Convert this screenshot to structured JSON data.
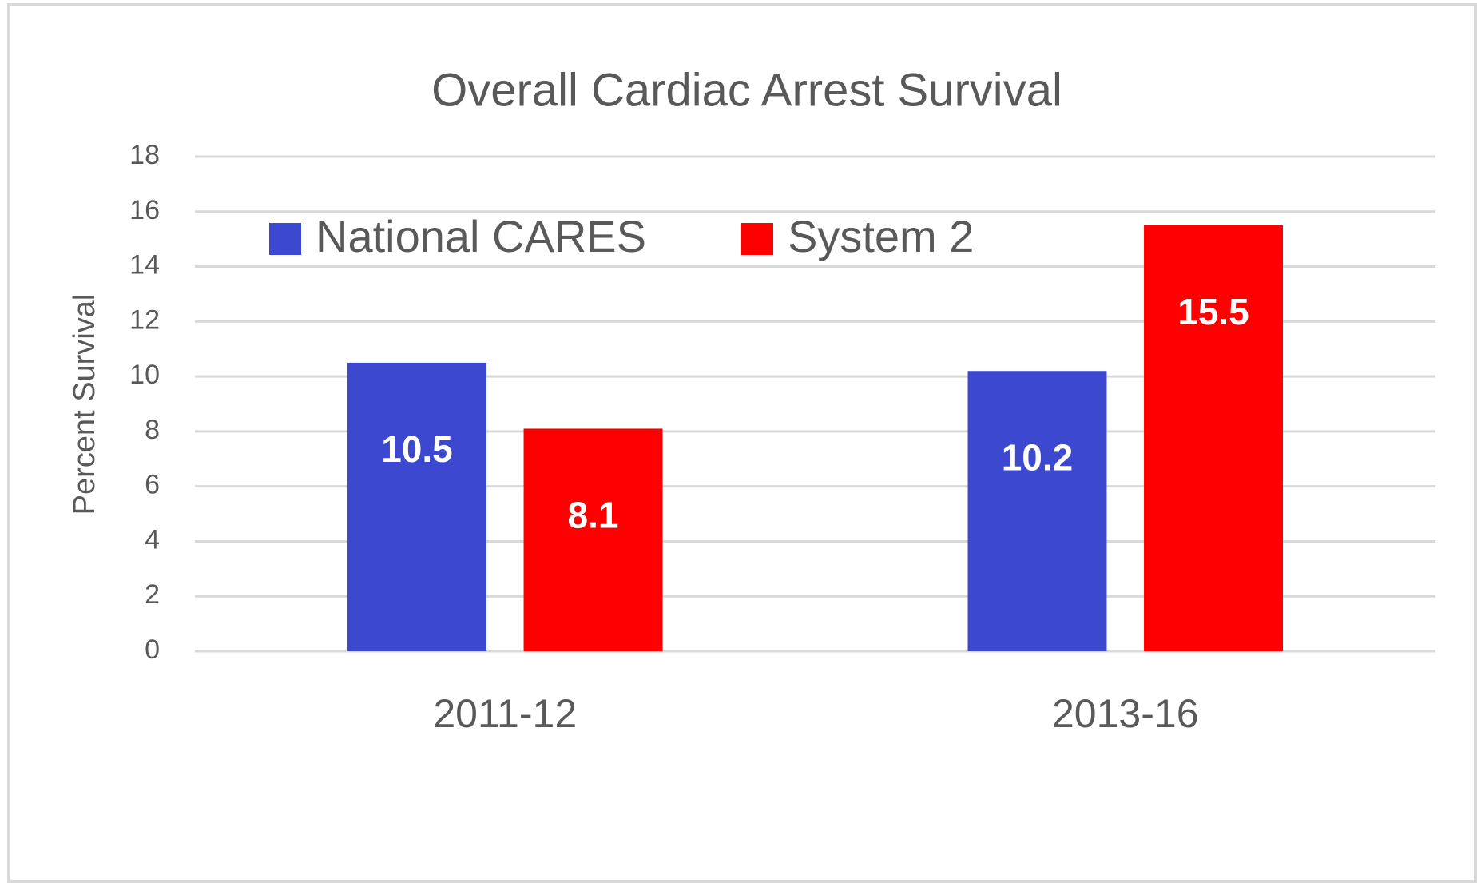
{
  "chart_data": {
    "type": "bar",
    "title": "Overall Cardiac Arrest Survival",
    "y_label": "Percent Survival",
    "categories": [
      "2011-12",
      "2013-16"
    ],
    "series": [
      {
        "name": "National CARES",
        "color": "#3c48d0",
        "values": [
          10.5,
          10.2
        ]
      },
      {
        "name": "System 2",
        "color": "#ff0000",
        "values": [
          8.1,
          15.5
        ]
      }
    ],
    "ylim": [
      0,
      18
    ],
    "yticks": [
      0,
      2,
      4,
      6,
      8,
      10,
      12,
      14,
      16,
      18
    ],
    "grid": true,
    "legend": "top"
  }
}
